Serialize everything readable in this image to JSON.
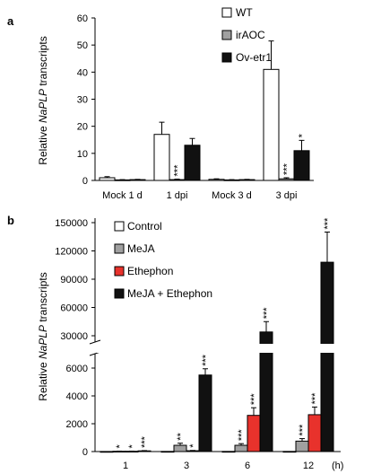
{
  "chart_data": [
    {
      "type": "bar",
      "panel_label": "a",
      "ylabel_prefix": "Relative ",
      "ylabel_italic": "NaPLP",
      "ylabel_suffix": " transcripts",
      "ylim": [
        0,
        60
      ],
      "yticks": [
        "0",
        "10",
        "20",
        "30",
        "40",
        "50",
        "60"
      ],
      "yticks_values": [
        0,
        10,
        20,
        30,
        40,
        50,
        60
      ],
      "categories": [
        "Mock 1 d",
        "1 dpi",
        "Mock 3 d",
        "3 dpi"
      ],
      "legend_position": "top-right",
      "series": [
        {
          "name": "WT",
          "color": "#ffffff",
          "values": [
            1.0,
            17.0,
            0.4,
            41.0
          ],
          "errors": [
            0.4,
            4.5,
            0.2,
            10.5
          ],
          "sig": [
            "",
            "",
            "",
            ""
          ]
        },
        {
          "name": "irAOC",
          "color": "#a0a0a0",
          "values": [
            0.2,
            0.3,
            0.2,
            0.6
          ],
          "errors": [
            0.1,
            0.2,
            0.1,
            0.4
          ],
          "sig": [
            "",
            "***",
            "",
            "***"
          ]
        },
        {
          "name": "Ov-etr1",
          "color": "#111111",
          "values": [
            0.3,
            13.0,
            0.3,
            11.0
          ],
          "errors": [
            0.1,
            2.5,
            0.1,
            3.8
          ],
          "sig": [
            "",
            "",
            "",
            "*"
          ]
        }
      ]
    },
    {
      "type": "bar",
      "panel_label": "b",
      "ylabel_prefix": "Relative ",
      "ylabel_italic": "NaPLP",
      "ylabel_suffix": " transcripts",
      "axis_break": true,
      "ylim_lower": [
        0,
        6000
      ],
      "ylim_upper": [
        30000,
        150000
      ],
      "yticks": [
        "0",
        "2000",
        "4000",
        "6000",
        "30000",
        "60000",
        "90000",
        "120000",
        "150000"
      ],
      "yticks_values": [
        0,
        2000,
        4000,
        6000,
        30000,
        60000,
        90000,
        120000,
        150000
      ],
      "categories": [
        "1",
        "3",
        "6",
        "12"
      ],
      "x_unit": "(h)",
      "legend_position": "top-left",
      "series": [
        {
          "name": "Control",
          "color": "#ffffff",
          "values": [
            5,
            10,
            10,
            10
          ],
          "errors": [
            0,
            0,
            0,
            0
          ],
          "sig": [
            "",
            "",
            "",
            ""
          ]
        },
        {
          "name": "MeJA",
          "color": "#a0a0a0",
          "values": [
            20,
            450,
            450,
            750
          ],
          "errors": [
            10,
            150,
            120,
            180
          ],
          "sig": [
            "*",
            "**",
            "***",
            "***"
          ]
        },
        {
          "name": "Ethephon",
          "color": "#e8322c",
          "values": [
            20,
            60,
            2600,
            2650
          ],
          "errors": [
            10,
            20,
            550,
            550
          ],
          "sig": [
            "*",
            "*",
            "***",
            "***"
          ]
        },
        {
          "name": "MeJA + Ethephon",
          "color": "#111111",
          "values": [
            50,
            5500,
            34000,
            108000
          ],
          "errors": [
            20,
            450,
            11000,
            32000
          ],
          "sig": [
            "***",
            "***",
            "***",
            "***"
          ]
        }
      ]
    }
  ]
}
